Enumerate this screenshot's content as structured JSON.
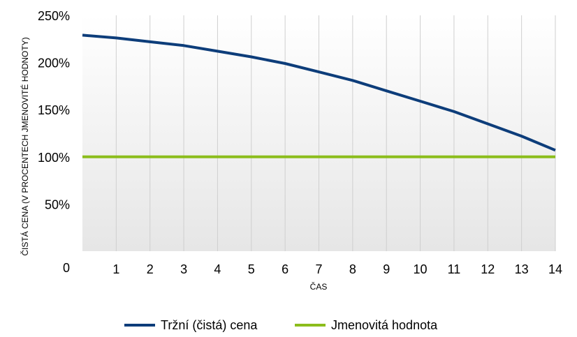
{
  "chart_data": {
    "type": "line",
    "xlabel": "ČAS",
    "ylabel": "ČISTÁ CENA (V PROCENTECH JMENOVITÉ HODNOTY)",
    "x": [
      0,
      1,
      2,
      3,
      4,
      5,
      6,
      7,
      8,
      9,
      10,
      11,
      12,
      13,
      14
    ],
    "x_tick_labels": [
      "1",
      "2",
      "3",
      "4",
      "5",
      "6",
      "7",
      "8",
      "9",
      "10",
      "11",
      "12",
      "13",
      "14"
    ],
    "y_tick_labels": [
      "0",
      "50%",
      "100%",
      "150%",
      "200%",
      "250%"
    ],
    "y_ticks": [
      0,
      50,
      100,
      150,
      200,
      250
    ],
    "xlim": [
      0,
      14
    ],
    "ylim": [
      0,
      250
    ],
    "grid": "vertical",
    "legend_position": "bottom",
    "series": [
      {
        "name": "Tržní (čistá) cena",
        "color": "#0d3d7a",
        "values": [
          229,
          226,
          222,
          218,
          212,
          206,
          199,
          190,
          181,
          170,
          159,
          148,
          135,
          122,
          107
        ]
      },
      {
        "name": "Jmenovitá hodnota",
        "color": "#8cbd1c",
        "values": [
          100,
          100,
          100,
          100,
          100,
          100,
          100,
          100,
          100,
          100,
          100,
          100,
          100,
          100,
          100
        ]
      }
    ]
  }
}
